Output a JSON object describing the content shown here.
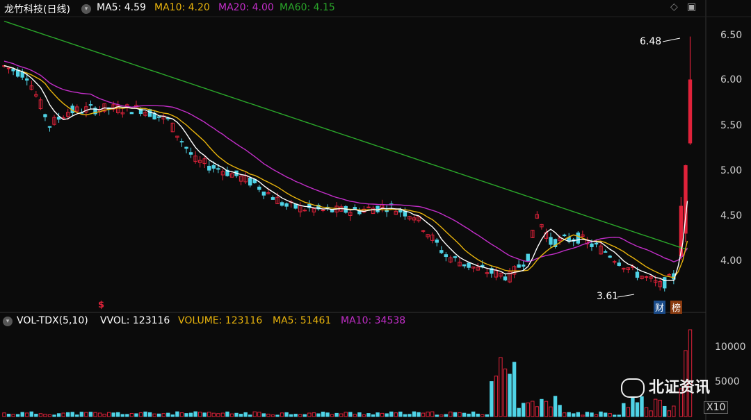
{
  "header": {
    "stock_name": "龙竹科技(日线)",
    "ma5": "MA5: 4.59",
    "ma10": "MA10: 4.20",
    "ma20": "MA20: 4.00",
    "ma60": "MA60: 4.15"
  },
  "y_axis": [
    "6.50",
    "6.00",
    "5.50",
    "5.00",
    "4.50",
    "4.00"
  ],
  "annotations": {
    "high": "6.48",
    "low": "3.61"
  },
  "badges": {
    "fin": "财",
    "list": "榜"
  },
  "marker": "$",
  "volume_header": {
    "indicator": "VOL-TDX(5,10)",
    "vvol": "VVOL: 123116",
    "volume": "VOLUME: 123116",
    "ma5": "MA5: 51461",
    "ma10": "MA10: 34538"
  },
  "volume_axis": [
    "10000",
    "5000"
  ],
  "watermark": "北证资讯",
  "zoom": "X10",
  "colors": {
    "up": "#e0223a",
    "down": "#4fd3e6",
    "ma5": "#ffffff",
    "ma10": "#e8b30c",
    "ma20": "#c22ec8",
    "ma60": "#2aa62a",
    "bg": "#0b0b0b"
  },
  "chart_data": {
    "type": "candlestick",
    "ma": {
      "ma5": 4.59,
      "ma10": 4.2,
      "ma20": 4.0,
      "ma60": 4.15
    },
    "price_high_label": 6.48,
    "price_low_label": 3.61
  }
}
